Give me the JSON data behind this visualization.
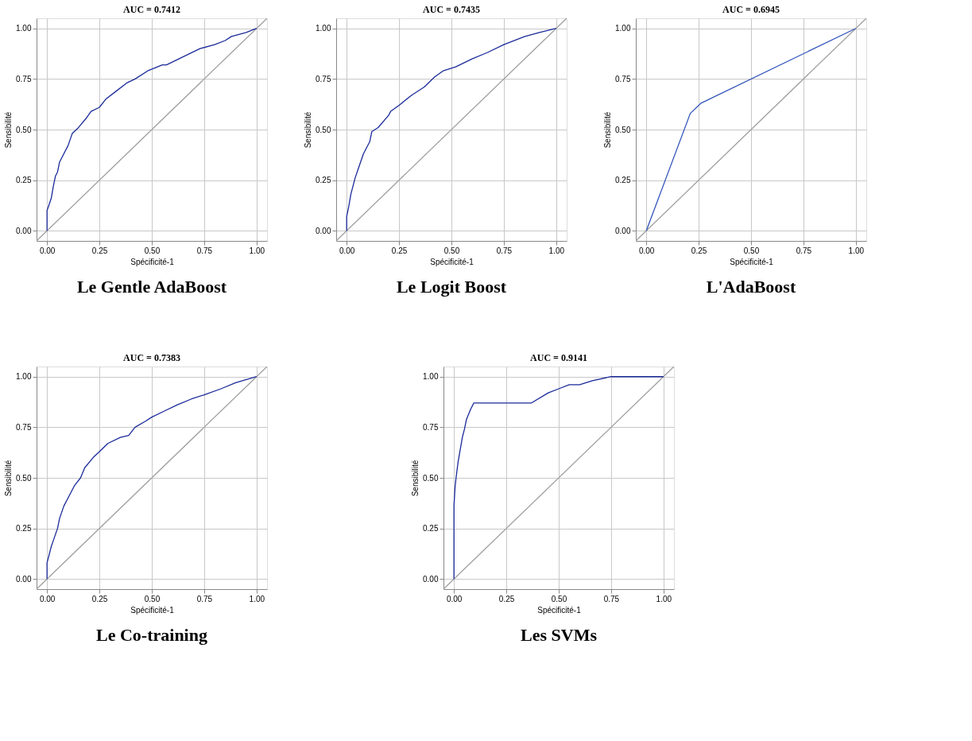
{
  "chart_data": [
    {
      "type": "line",
      "title": "AUC = 0.7412",
      "xlabel": "Spécificité-1",
      "ylabel": "Sensibilité",
      "annotations": [
        "Le Gentle AdaBoost"
      ],
      "xlim": [
        -0.05,
        1.05
      ],
      "ylim": [
        -0.05,
        1.05
      ],
      "xticks": [
        {
          "value": 0,
          "label": "0.00"
        },
        {
          "value": 0.25,
          "label": "0.25"
        },
        {
          "value": 0.5,
          "label": "0.50"
        },
        {
          "value": 0.75,
          "label": "0.75"
        },
        {
          "value": 1,
          "label": "1.00"
        }
      ],
      "yticks": [
        {
          "value": 0,
          "label": "0.00"
        },
        {
          "value": 0.25,
          "label": "0.25"
        },
        {
          "value": 0.5,
          "label": "0.50"
        },
        {
          "value": 0.75,
          "label": "0.75"
        },
        {
          "value": 1,
          "label": "1.00"
        }
      ],
      "grid": true,
      "series": [
        {
          "color": "#a0a0a0",
          "x": [
            -0.05,
            1.05
          ],
          "values": [
            -0.05,
            1.05
          ]
        },
        {
          "color": "#1a2a9a",
          "x": [
            0,
            0,
            0.01,
            0.02,
            0.03,
            0.04,
            0.05,
            0.06,
            0.08,
            0.1,
            0.12,
            0.15,
            0.19,
            0.21,
            0.25,
            0.28,
            0.33,
            0.38,
            0.42,
            0.48,
            0.55,
            0.57,
            0.65,
            0.73,
            0.8,
            0.85,
            0.88,
            0.95,
            1
          ],
          "values": [
            0,
            0.1,
            0.13,
            0.16,
            0.22,
            0.27,
            0.29,
            0.34,
            0.38,
            0.42,
            0.48,
            0.51,
            0.56,
            0.59,
            0.61,
            0.65,
            0.69,
            0.73,
            0.75,
            0.79,
            0.82,
            0.82,
            0.86,
            0.9,
            0.92,
            0.94,
            0.96,
            0.98,
            1
          ]
        }
      ]
    },
    {
      "type": "line",
      "title": "AUC = 0.7435",
      "xlabel": "Spécificité-1",
      "ylabel": "Sensibilité",
      "annotations": [
        "Le Logit Boost"
      ],
      "xlim": [
        -0.05,
        1.05
      ],
      "ylim": [
        -0.05,
        1.05
      ],
      "xticks": [
        {
          "value": 0,
          "label": "0.00"
        },
        {
          "value": 0.25,
          "label": "0.25"
        },
        {
          "value": 0.5,
          "label": "0.50"
        },
        {
          "value": 0.75,
          "label": "0.75"
        },
        {
          "value": 1,
          "label": "1.00"
        }
      ],
      "yticks": [
        {
          "value": 0,
          "label": "0.00"
        },
        {
          "value": 0.25,
          "label": "0.25"
        },
        {
          "value": 0.5,
          "label": "0.50"
        },
        {
          "value": 0.75,
          "label": "0.75"
        },
        {
          "value": 1,
          "label": "1.00"
        }
      ],
      "grid": true,
      "series": [
        {
          "color": "#a0a0a0",
          "x": [
            -0.05,
            1.05
          ],
          "values": [
            -0.05,
            1.05
          ]
        },
        {
          "color": "#1a2a9a",
          "x": [
            0,
            0,
            0.01,
            0.02,
            0.04,
            0.06,
            0.08,
            0.11,
            0.12,
            0.15,
            0.2,
            0.21,
            0.25,
            0.31,
            0.37,
            0.42,
            0.46,
            0.52,
            0.6,
            0.67,
            0.75,
            0.85,
            0.92,
            1
          ],
          "values": [
            0,
            0.07,
            0.12,
            0.18,
            0.26,
            0.32,
            0.38,
            0.44,
            0.49,
            0.51,
            0.57,
            0.59,
            0.62,
            0.67,
            0.71,
            0.76,
            0.79,
            0.81,
            0.85,
            0.88,
            0.92,
            0.96,
            0.98,
            1
          ]
        }
      ]
    },
    {
      "type": "line",
      "title": "AUC = 0.6945",
      "xlabel": "Spécificité-1",
      "ylabel": "Sensibilité",
      "annotations": [
        "L'AdaBoost"
      ],
      "xlim": [
        -0.05,
        1.05
      ],
      "ylim": [
        -0.05,
        1.05
      ],
      "xticks": [
        {
          "value": 0,
          "label": "0.00"
        },
        {
          "value": 0.25,
          "label": "0.25"
        },
        {
          "value": 0.5,
          "label": "0.50"
        },
        {
          "value": 0.75,
          "label": "0.75"
        },
        {
          "value": 1,
          "label": "1.00"
        }
      ],
      "yticks": [
        {
          "value": 0,
          "label": "0.00"
        },
        {
          "value": 0.25,
          "label": "0.25"
        },
        {
          "value": 0.5,
          "label": "0.50"
        },
        {
          "value": 0.75,
          "label": "0.75"
        },
        {
          "value": 1,
          "label": "1.00"
        }
      ],
      "grid": true,
      "series": [
        {
          "color": "#a0a0a0",
          "x": [
            -0.05,
            1.05
          ],
          "values": [
            -0.05,
            1.05
          ]
        },
        {
          "color": "#3355bb",
          "x": [
            0,
            0.21,
            0.26,
            0.28,
            1
          ],
          "values": [
            0,
            0.58,
            0.63,
            0.64,
            1
          ]
        }
      ]
    },
    {
      "type": "line",
      "title": "AUC = 0.7383",
      "xlabel": "Spécificité-1",
      "ylabel": "Sensibilité",
      "annotations": [
        "Le Co-training"
      ],
      "xlim": [
        -0.05,
        1.05
      ],
      "ylim": [
        -0.05,
        1.05
      ],
      "xticks": [
        {
          "value": 0,
          "label": "0.00"
        },
        {
          "value": 0.25,
          "label": "0.25"
        },
        {
          "value": 0.5,
          "label": "0.50"
        },
        {
          "value": 0.75,
          "label": "0.75"
        },
        {
          "value": 1,
          "label": "1.00"
        }
      ],
      "yticks": [
        {
          "value": 0,
          "label": "0.00"
        },
        {
          "value": 0.25,
          "label": "0.25"
        },
        {
          "value": 0.5,
          "label": "0.50"
        },
        {
          "value": 0.75,
          "label": "0.75"
        },
        {
          "value": 1,
          "label": "1.00"
        }
      ],
      "grid": true,
      "series": [
        {
          "color": "#a0a0a0",
          "x": [
            -0.05,
            1.05
          ],
          "values": [
            -0.05,
            1.05
          ]
        },
        {
          "color": "#1a2a9a",
          "x": [
            0,
            0,
            0.01,
            0.02,
            0.03,
            0.05,
            0.06,
            0.08,
            0.1,
            0.13,
            0.16,
            0.18,
            0.22,
            0.25,
            0.29,
            0.35,
            0.39,
            0.42,
            0.47,
            0.5,
            0.56,
            0.62,
            0.69,
            0.75,
            0.83,
            0.9,
            1
          ],
          "values": [
            0,
            0.08,
            0.12,
            0.16,
            0.19,
            0.25,
            0.3,
            0.36,
            0.4,
            0.46,
            0.5,
            0.55,
            0.6,
            0.63,
            0.67,
            0.7,
            0.71,
            0.75,
            0.78,
            0.8,
            0.83,
            0.86,
            0.89,
            0.91,
            0.94,
            0.97,
            1
          ]
        }
      ]
    },
    {
      "type": "line",
      "title": "AUC = 0.9141",
      "xlabel": "Spécificité-1",
      "ylabel": "Sensibilité",
      "annotations": [
        "Les SVMs"
      ],
      "xlim": [
        -0.05,
        1.05
      ],
      "ylim": [
        -0.05,
        1.05
      ],
      "xticks": [
        {
          "value": 0,
          "label": "0.00"
        },
        {
          "value": 0.25,
          "label": "0.25"
        },
        {
          "value": 0.5,
          "label": "0.50"
        },
        {
          "value": 0.75,
          "label": "0.75"
        },
        {
          "value": 1,
          "label": "1.00"
        }
      ],
      "yticks": [
        {
          "value": 0,
          "label": "0.00"
        },
        {
          "value": 0.25,
          "label": "0.25"
        },
        {
          "value": 0.5,
          "label": "0.50"
        },
        {
          "value": 0.75,
          "label": "0.75"
        },
        {
          "value": 1,
          "label": "1.00"
        }
      ],
      "grid": true,
      "series": [
        {
          "color": "#a0a0a0",
          "x": [
            -0.05,
            1.05
          ],
          "values": [
            -0.05,
            1.05
          ]
        },
        {
          "color": "#1a2a9a",
          "x": [
            0,
            0,
            0.005,
            0.01,
            0.02,
            0.03,
            0.04,
            0.05,
            0.06,
            0.08,
            0.095,
            0.37,
            0.45,
            0.5,
            0.55,
            0.6,
            0.66,
            0.75,
            1
          ],
          "values": [
            0,
            0.36,
            0.45,
            0.5,
            0.58,
            0.64,
            0.7,
            0.74,
            0.79,
            0.84,
            0.87,
            0.87,
            0.92,
            0.94,
            0.96,
            0.96,
            0.98,
            1.0,
            1
          ]
        }
      ]
    }
  ]
}
